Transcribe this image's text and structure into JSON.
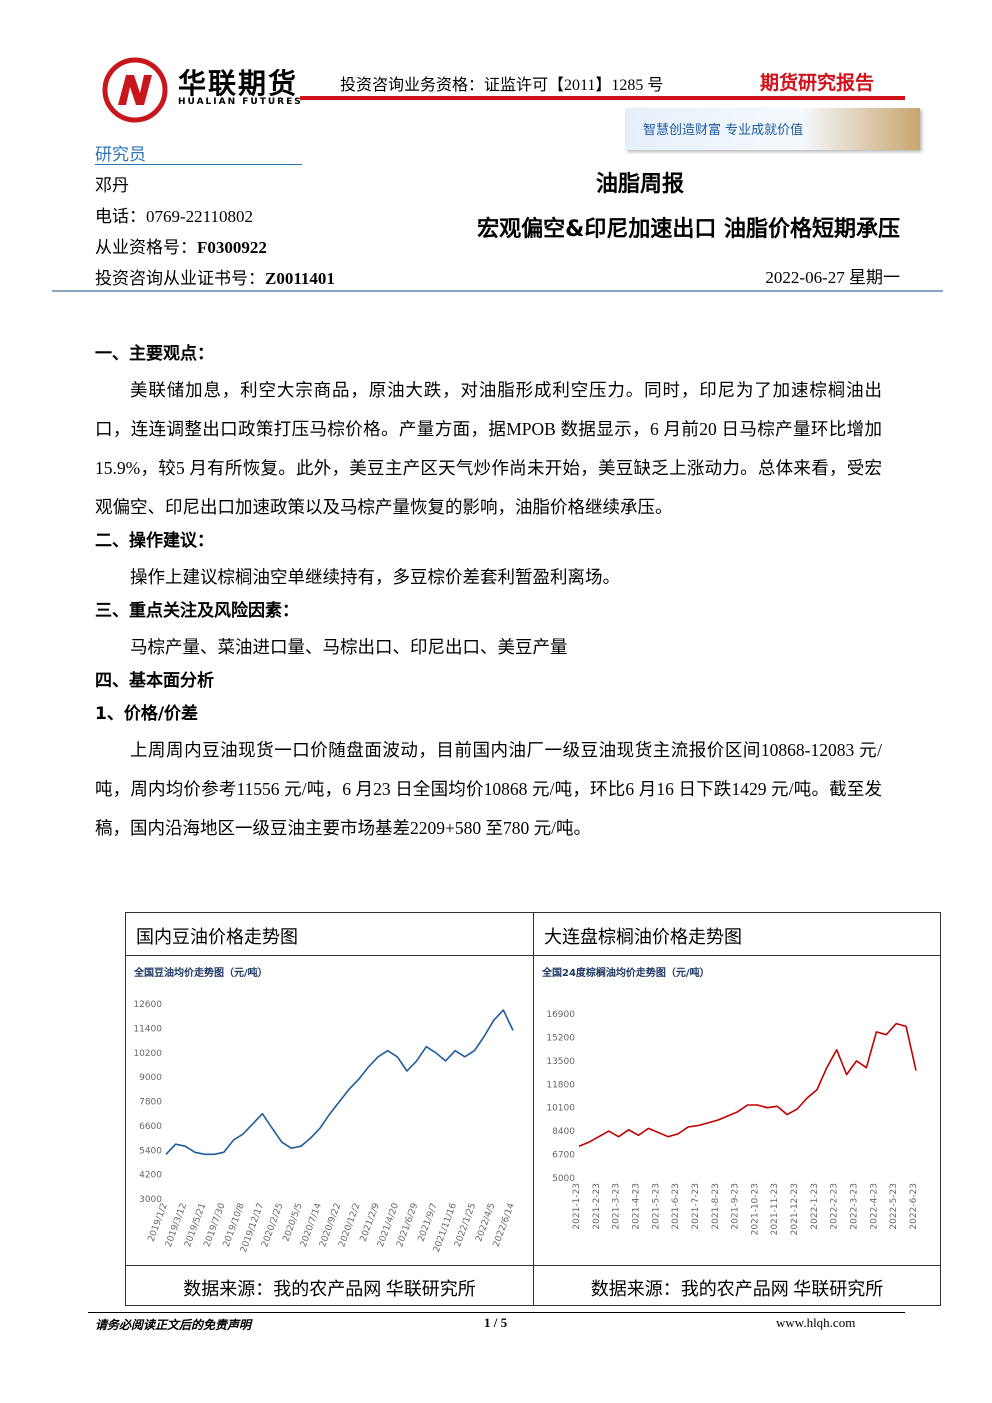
{
  "header": {
    "company": "华联期货",
    "company_en": "HUALIAN FUTURES",
    "qualification": "投资咨询业务资格：证监许可【2011】1285 号",
    "report_type": "期货研究报告",
    "slogan": "智慧创造财富  专业成就价值"
  },
  "researcher": {
    "heading": "研究员",
    "name": "邓丹",
    "phone": "电话：0769-22110802",
    "license_label": "从业资格号：",
    "license": "F0300922",
    "cert_label": "投资咨询从业证书号：",
    "cert": "Z0011401"
  },
  "title": {
    "category": "油脂周报",
    "headline": "宏观偏空&印尼加速出口 油脂价格短期承压",
    "date": "2022-06-27  星期一"
  },
  "body": [
    {
      "heading": "一、主要观点：",
      "text": "美联储加息，利空大宗商品，原油大跌，对油脂形成利空压力。同时，印尼为了加速棕榈油出口，连连调整出口政策打压马棕价格。产量方面，据MPOB 数据显示，6 月前20 日马棕产量环比增加15.9%，较5 月有所恢复。此外，美豆主产区天气炒作尚未开始，美豆缺乏上涨动力。总体来看，受宏观偏空、印尼出口加速政策以及马棕产量恢复的影响，油脂价格继续承压。"
    },
    {
      "heading": "二、操作建议：",
      "text": "操作上建议棕榈油空单继续持有，多豆棕价差套利暂盈利离场。"
    },
    {
      "heading": "三、重点关注及风险因素：",
      "text": "马棕产量、菜油进口量、马棕出口、印尼出口、美豆产量"
    },
    {
      "heading": "四、基本面分析"
    },
    {
      "heading": "1、价格/价差",
      "text": "上周周内豆油现货一口价随盘面波动，目前国内油厂一级豆油现货主流报价区间10868-12083 元/吨，周内均价参考11556 元/吨，6 月23 日全国均价10868 元/吨，环比6 月16 日下跌1429 元/吨。截至发稿，国内沿海地区一级豆油主要市场基差2209+580 至780 元/吨。"
    }
  ],
  "figures": [
    {
      "caption": "国内豆油价格走势图",
      "source": "数据来源：我的农产品网  华联研究所",
      "chart_data": {
        "type": "line",
        "title": "全国豆油均价走势图（元/吨）",
        "color": "#1f5c99",
        "categories": [
          "2019/1/2",
          null,
          "2019/3/12",
          null,
          "2019/5/21",
          null,
          "2019/7/30",
          null,
          "2019/10/8",
          null,
          "2019/12/17",
          null,
          "2020/2/25",
          null,
          "2020/5/5",
          null,
          "2020/7/14",
          null,
          "2020/9/22",
          null,
          "2020/12/2",
          null,
          "2021/2/9",
          null,
          "2021/4/20",
          null,
          "2021/6/29",
          null,
          "2021/9/7",
          null,
          "2021/11/16",
          null,
          "2022/1/25",
          null,
          "2022/4/5",
          null,
          "2022/6/14"
        ],
        "values": [
          5200,
          5700,
          5600,
          5300,
          5200,
          5200,
          5300,
          5900,
          6200,
          6700,
          7200,
          6500,
          5800,
          5500,
          5600,
          6000,
          6500,
          7200,
          7800,
          8400,
          8900,
          9500,
          10000,
          10300,
          10000,
          9300,
          9800,
          10500,
          10200,
          9800,
          10300,
          10000,
          10300,
          11000,
          11800,
          12300,
          11300
        ],
        "ylim": [
          3000,
          12600
        ],
        "yticks": [
          3000,
          4200,
          5400,
          6600,
          7800,
          9000,
          10200,
          11400,
          12600
        ]
      }
    },
    {
      "caption": "大连盘棕榈油价格走势图",
      "source": "数据来源：我的农产品网  华联研究所",
      "chart_data": {
        "type": "line",
        "title": "全国24度棕榈油均价走势图（元/吨）",
        "color": "#c00000",
        "categories": [
          "2021-1-23",
          null,
          "2021-2-23",
          null,
          "2021-3-23",
          null,
          "2021-4-23",
          null,
          "2021-5-23",
          null,
          "2021-6-23",
          null,
          "2021-7-23",
          null,
          "2021-8-23",
          null,
          "2021-9-23",
          null,
          "2021-10-23",
          null,
          "2021-11-23",
          null,
          "2021-12-23",
          null,
          "2022-1-23",
          null,
          "2022-2-23",
          null,
          "2022-3-23",
          null,
          "2022-4-23",
          null,
          "2022-5-23",
          null,
          "2022-6-23"
        ],
        "values": [
          7300,
          7600,
          8000,
          8400,
          8000,
          8500,
          8100,
          8600,
          8300,
          8000,
          8200,
          8700,
          8800,
          9000,
          9200,
          9500,
          9800,
          10300,
          10300,
          10100,
          10200,
          9600,
          10000,
          10800,
          11400,
          13000,
          14300,
          12500,
          13500,
          13000,
          15600,
          15400,
          16200,
          16000,
          12800
        ],
        "ylim": [
          5000,
          16900
        ],
        "yticks": [
          5000,
          6700,
          8400,
          10100,
          11800,
          13500,
          15200,
          16900
        ]
      }
    }
  ],
  "footer": {
    "disclaimer": "请务必阅读正文后的免责声明",
    "page": "1 / 5",
    "site": "www.hlqh.com"
  }
}
